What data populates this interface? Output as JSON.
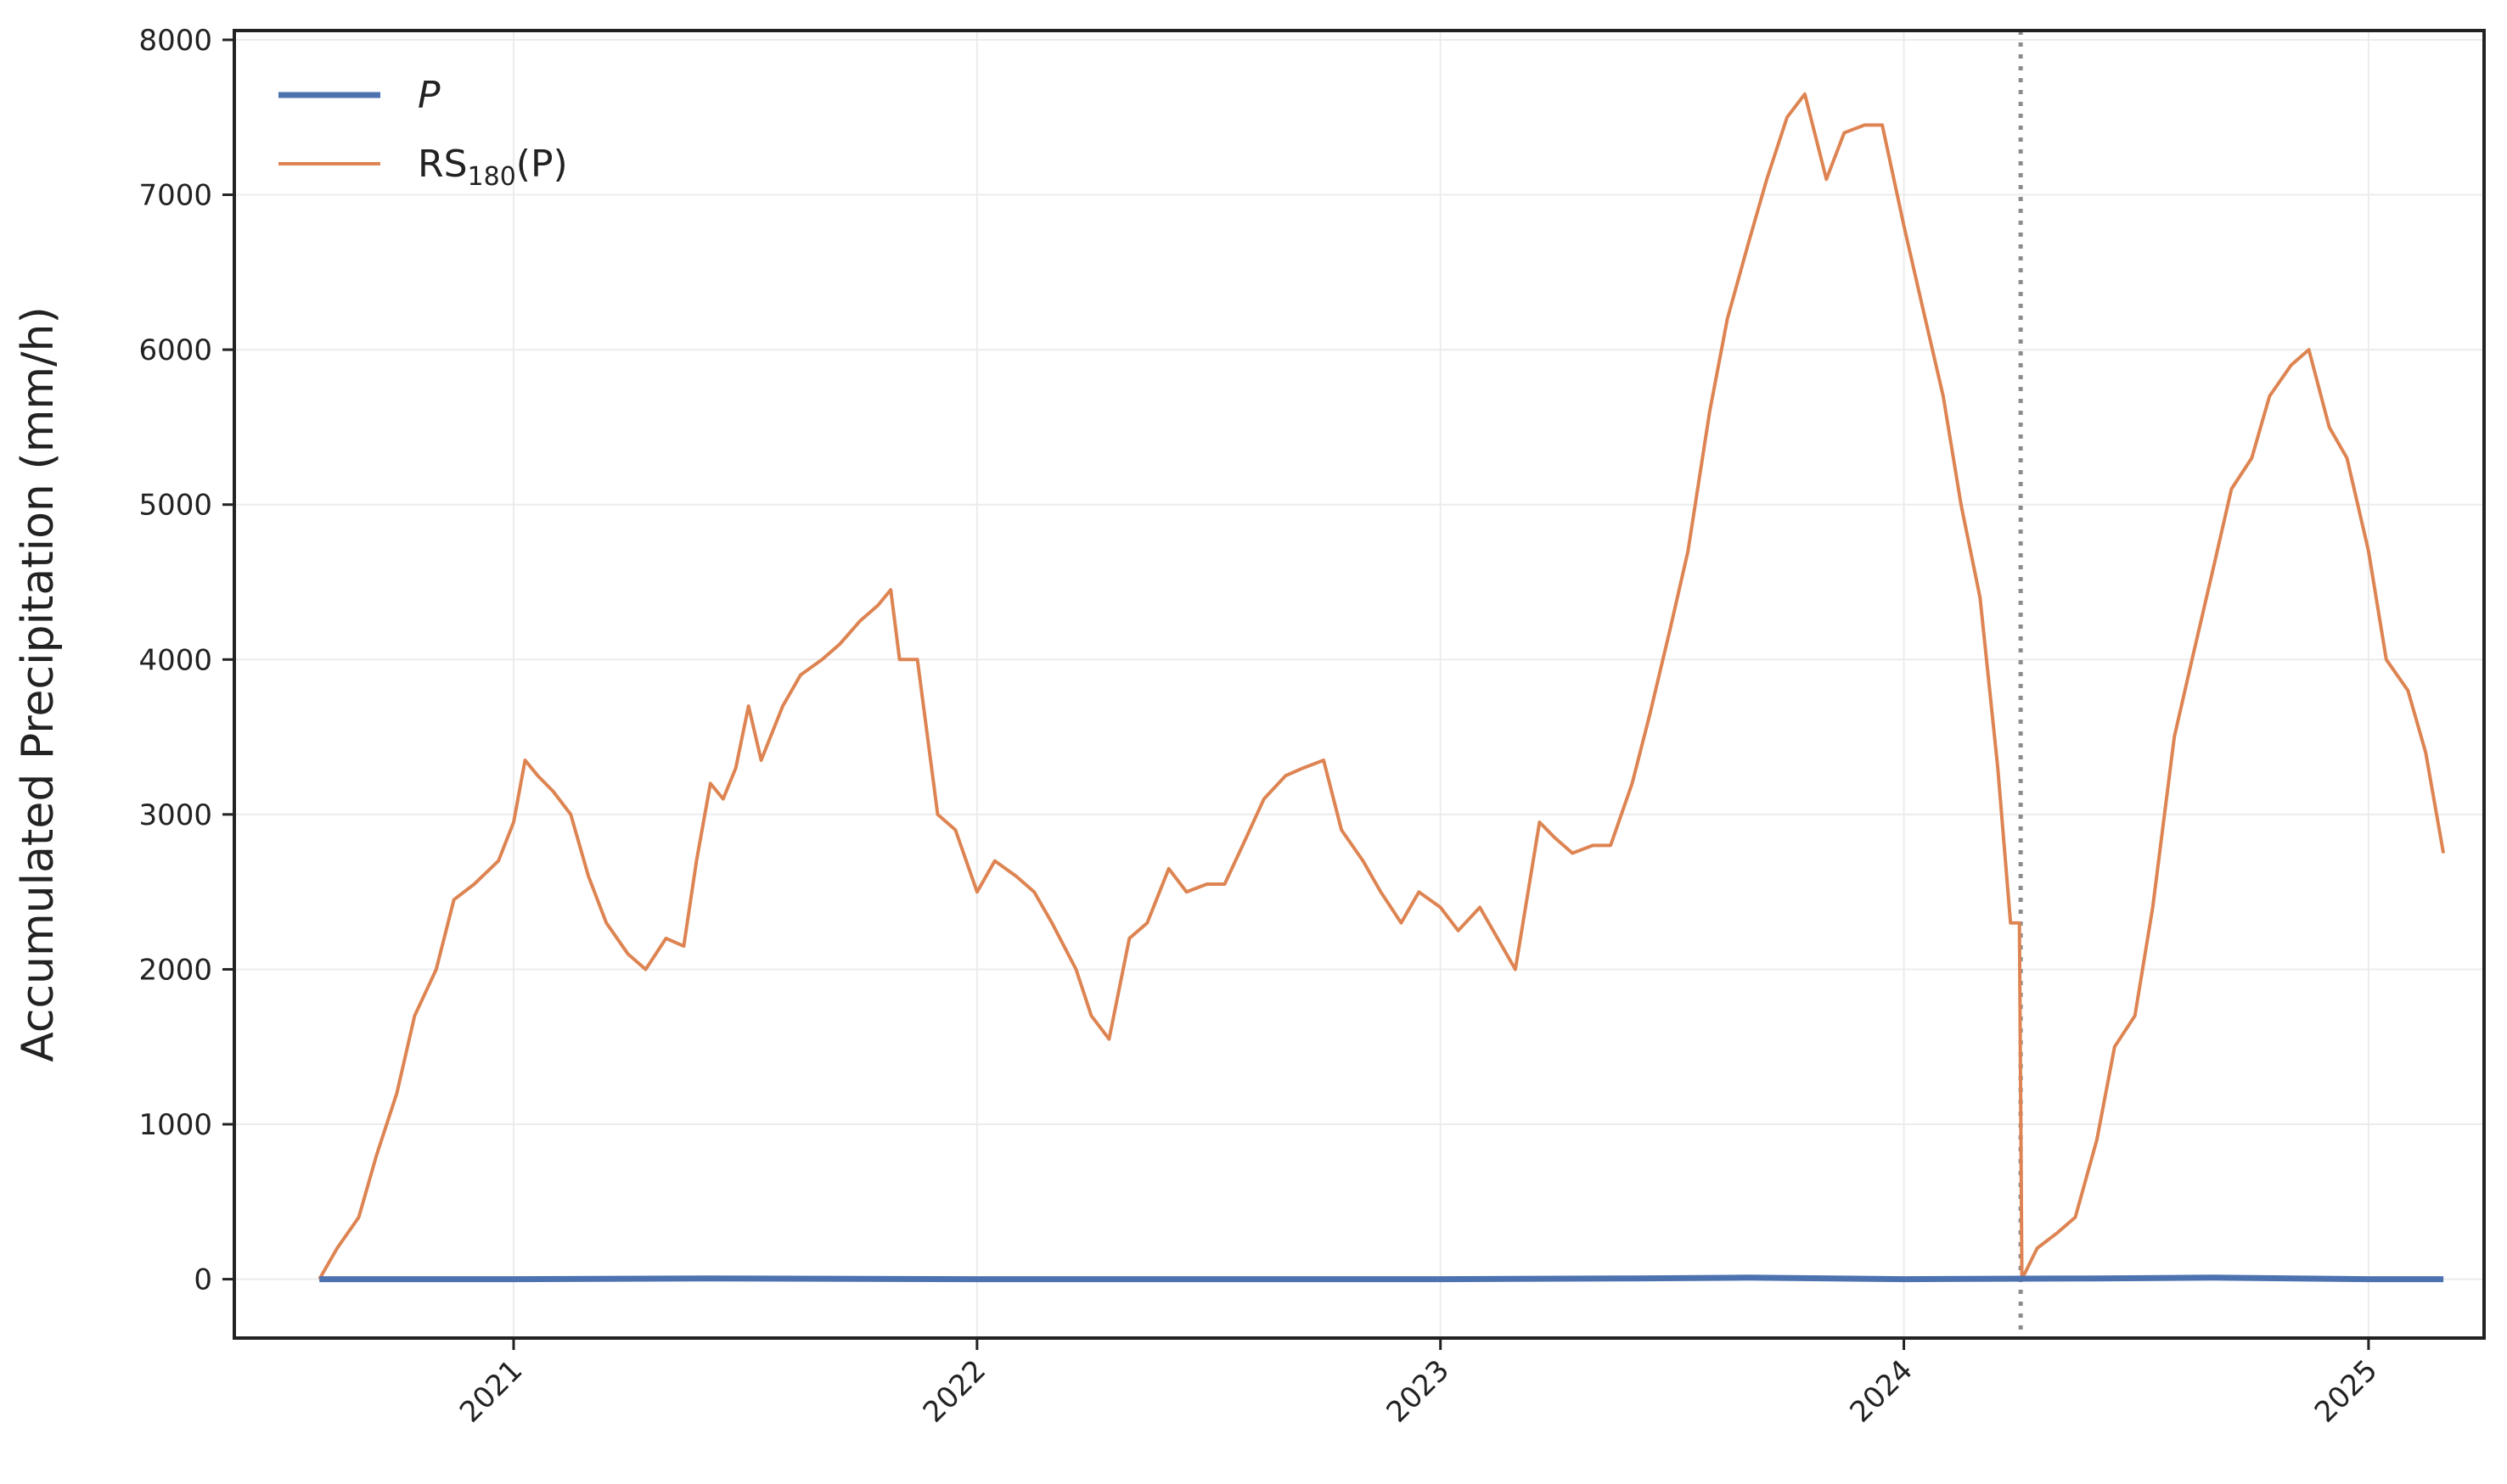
{
  "chart_data": {
    "type": "line",
    "title": "",
    "xlabel": "",
    "ylabel": "Accumulated Precipitation (mm/h)",
    "x_ticks": [
      "2021",
      "2022",
      "2023",
      "2024",
      "2025"
    ],
    "y_ticks": [
      "0",
      "1000",
      "2000",
      "3000",
      "4000",
      "5000",
      "6000",
      "7000",
      "8000"
    ],
    "xlim": [
      "2020-05-26",
      "2025-04-02"
    ],
    "ylim": [
      -380,
      8060
    ],
    "grid": true,
    "legend_position": "top-left",
    "vline": {
      "x": "2024-04-02",
      "style": "dotted",
      "color": "#8c8c8c"
    },
    "series": [
      {
        "name": "P",
        "color": "#4c72b0",
        "x": [
          "2020-08-01",
          "2021-01-01",
          "2021-06-01",
          "2022-01-01",
          "2022-06-01",
          "2023-01-01",
          "2023-06-01",
          "2023-09-01",
          "2024-01-01",
          "2024-06-01",
          "2024-09-01",
          "2025-01-01",
          "2025-03-01"
        ],
        "y": [
          0,
          0,
          5,
          0,
          0,
          0,
          5,
          10,
          0,
          5,
          10,
          0,
          0
        ]
      },
      {
        "name": "RS180(P)",
        "color": "#dd8452",
        "x": [
          "2020-08-01",
          "2020-08-15",
          "2020-09-01",
          "2020-09-15",
          "2020-10-01",
          "2020-10-15",
          "2020-11-01",
          "2020-11-15",
          "2020-12-01",
          "2020-12-20",
          "2021-01-01",
          "2021-01-10",
          "2021-01-20",
          "2021-02-01",
          "2021-02-15",
          "2021-03-01",
          "2021-03-15",
          "2021-04-01",
          "2021-04-15",
          "2021-05-01",
          "2021-05-15",
          "2021-05-25",
          "2021-06-05",
          "2021-06-15",
          "2021-06-25",
          "2021-07-05",
          "2021-07-15",
          "2021-08-01",
          "2021-08-15",
          "2021-09-01",
          "2021-09-15",
          "2021-10-01",
          "2021-10-15",
          "2021-10-25",
          "2021-11-01",
          "2021-11-15",
          "2021-12-01",
          "2021-12-15",
          "2022-01-01",
          "2022-01-15",
          "2022-02-01",
          "2022-02-15",
          "2022-03-01",
          "2022-03-20",
          "2022-04-01",
          "2022-04-15",
          "2022-05-01",
          "2022-05-15",
          "2022-06-01",
          "2022-06-15",
          "2022-07-01",
          "2022-07-15",
          "2022-08-01",
          "2022-08-15",
          "2022-09-01",
          "2022-09-15",
          "2022-10-01",
          "2022-10-15",
          "2022-11-01",
          "2022-11-15",
          "2022-12-01",
          "2022-12-15",
          "2023-01-01",
          "2023-01-15",
          "2023-02-01",
          "2023-02-15",
          "2023-03-01",
          "2023-03-20",
          "2023-04-01",
          "2023-04-15",
          "2023-05-01",
          "2023-05-15",
          "2023-06-01",
          "2023-06-15",
          "2023-07-01",
          "2023-07-15",
          "2023-08-01",
          "2023-08-15",
          "2023-09-01",
          "2023-09-15",
          "2023-10-01",
          "2023-10-15",
          "2023-11-01",
          "2023-11-15",
          "2023-12-01",
          "2023-12-15",
          "2024-01-01",
          "2024-01-15",
          "2024-02-01",
          "2024-02-15",
          "2024-03-01",
          "2024-03-15",
          "2024-03-25",
          "2024-04-01",
          "2024-04-03",
          "2024-04-15",
          "2024-05-01",
          "2024-05-15",
          "2024-06-01",
          "2024-06-15",
          "2024-07-01",
          "2024-07-15",
          "2024-08-01",
          "2024-08-15",
          "2024-09-01",
          "2024-09-15",
          "2024-10-01",
          "2024-10-15",
          "2024-11-01",
          "2024-11-15",
          "2024-12-01",
          "2024-12-15",
          "2025-01-01",
          "2025-01-15",
          "2025-02-01",
          "2025-02-15",
          "2025-03-01"
        ],
        "y": [
          0,
          200,
          400,
          800,
          1200,
          1700,
          2000,
          2450,
          2550,
          2700,
          2950,
          3350,
          3250,
          3150,
          3000,
          2600,
          2300,
          2100,
          2000,
          2200,
          2150,
          2700,
          3200,
          3100,
          3300,
          3700,
          3350,
          3700,
          3900,
          4000,
          4100,
          4250,
          4350,
          4450,
          4000,
          4000,
          3000,
          2900,
          2500,
          2700,
          2600,
          2500,
          2300,
          2000,
          1700,
          1550,
          2200,
          2300,
          2650,
          2500,
          2550,
          2550,
          2850,
          3100,
          3250,
          3300,
          3350,
          2900,
          2700,
          2500,
          2300,
          2500,
          2400,
          2250,
          2400,
          2200,
          2000,
          2950,
          2850,
          2750,
          2800,
          2800,
          3200,
          3650,
          4200,
          4700,
          5600,
          6200,
          6700,
          7100,
          7500,
          7650,
          7100,
          7400,
          7450,
          7450,
          6800,
          6300,
          5700,
          5000,
          4400,
          3300,
          2300,
          2300,
          0,
          200,
          300,
          400,
          900,
          1500,
          1700,
          2400,
          3500,
          4000,
          4600,
          5100,
          5300,
          5700,
          5900,
          6000,
          5500,
          5300,
          4700,
          4000,
          3800,
          3400,
          2750
        ]
      }
    ]
  },
  "legend": {
    "p_label": "P",
    "rs_label_main": "RS",
    "rs_label_sub": "180",
    "rs_label_arg": "(P)"
  }
}
